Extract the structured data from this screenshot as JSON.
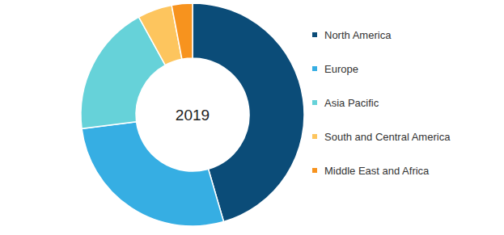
{
  "chart_data": {
    "type": "donut",
    "title": "2019",
    "categories": [
      "North America",
      "Europe",
      "Asia Pacific",
      "South and Central America",
      "Middle East and Africa"
    ],
    "values": [
      45.5,
      27.5,
      19,
      5,
      3
    ],
    "colors": [
      "#0b4c78",
      "#36aee3",
      "#66d2d9",
      "#fdc55e",
      "#f7931e"
    ],
    "legend": "right"
  }
}
